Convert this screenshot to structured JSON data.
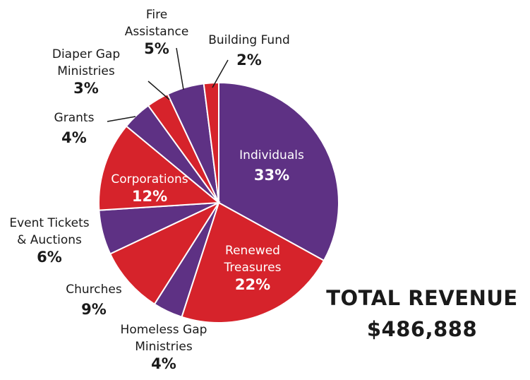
{
  "chart_data": {
    "type": "pie",
    "slices": [
      {
        "label": [
          "Individuals"
        ],
        "value": 33,
        "pct": "33%",
        "color": "#5e3184",
        "inside": true
      },
      {
        "label": [
          "Renewed",
          "Treasures"
        ],
        "value": 22,
        "pct": "22%",
        "color": "#d6232b",
        "inside": true
      },
      {
        "label": [
          "Homeless Gap",
          "Ministries"
        ],
        "value": 4,
        "pct": "4%",
        "color": "#5e3184",
        "inside": false
      },
      {
        "label": [
          "Churches"
        ],
        "value": 9,
        "pct": "9%",
        "color": "#d6232b",
        "inside": false
      },
      {
        "label": [
          "Event Tickets",
          "& Auctions"
        ],
        "value": 6,
        "pct": "6%",
        "color": "#5e3184",
        "inside": false
      },
      {
        "label": [
          "Corporations"
        ],
        "value": 12,
        "pct": "12%",
        "color": "#d6232b",
        "inside": true
      },
      {
        "label": [
          "Grants"
        ],
        "value": 4,
        "pct": "4%",
        "color": "#5e3184",
        "inside": false
      },
      {
        "label": [
          "Diaper Gap",
          "Ministries"
        ],
        "value": 3,
        "pct": "3%",
        "color": "#d6232b",
        "inside": false
      },
      {
        "label": [
          "Fire",
          "Assistance"
        ],
        "value": 5,
        "pct": "5%",
        "color": "#5e3184",
        "inside": false
      },
      {
        "label": [
          "Building Fund"
        ],
        "value": 2,
        "pct": "2%",
        "color": "#d6232b",
        "inside": false
      }
    ]
  },
  "total": {
    "title": "TOTAL REVENUE",
    "amount": "$486,888"
  }
}
